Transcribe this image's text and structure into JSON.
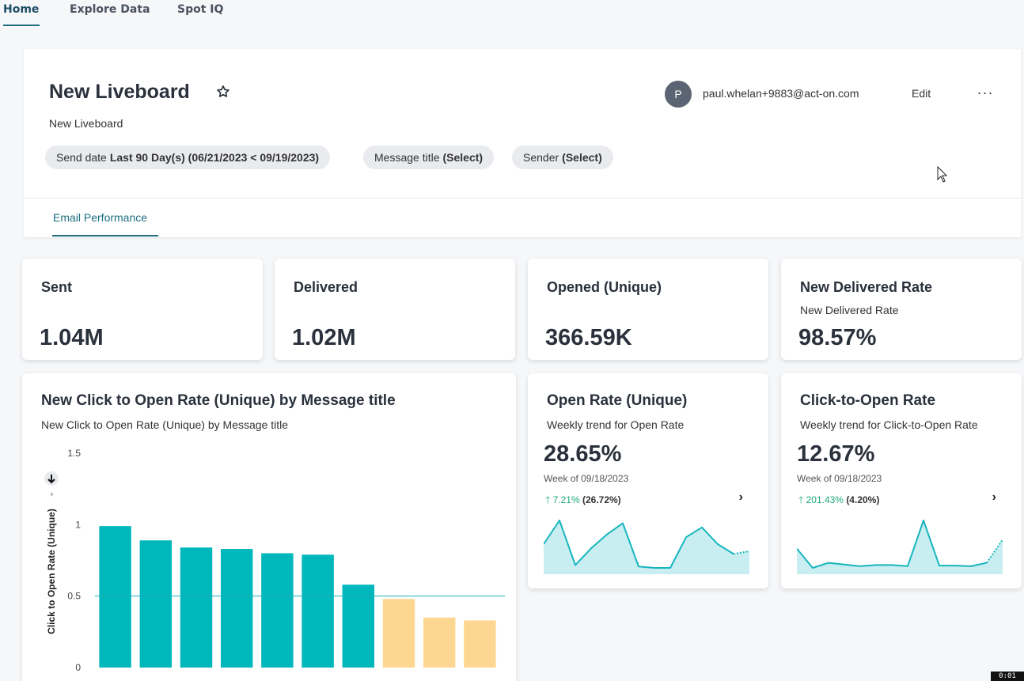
{
  "nav": {
    "tabs": [
      {
        "label": "Home",
        "active": true
      },
      {
        "label": "Explore Data",
        "active": false
      },
      {
        "label": "Spot IQ",
        "active": false
      }
    ]
  },
  "liveboard": {
    "title": "New Liveboard",
    "subtitle": "New Liveboard",
    "user": {
      "initial": "P",
      "email": "paul.whelan+9883@act-on.com"
    },
    "edit_label": "Edit",
    "more_label": "···",
    "filters": [
      {
        "label": "Send date",
        "value": "Last 90 Day(s) (06/21/2023 < 09/19/2023)"
      },
      {
        "label": "Message title",
        "value": "(Select)"
      },
      {
        "label": "Sender",
        "value": "(Select)"
      }
    ],
    "tab": "Email Performance"
  },
  "kpis": [
    {
      "title": "Sent",
      "subtitle": "",
      "value": "1.04M"
    },
    {
      "title": "Delivered",
      "subtitle": "",
      "value": "1.02M"
    },
    {
      "title": "Opened (Unique)",
      "subtitle": "",
      "value": "366.59K"
    },
    {
      "title": "New Delivered Rate",
      "subtitle": "New Delivered Rate",
      "value": "98.57%"
    }
  ],
  "bar_card": {
    "title": "New Click to Open Rate (Unique) by Message title",
    "subtitle": "New Click to Open Rate (Unique) by Message title"
  },
  "chart_data": {
    "type": "bar",
    "title": "New Click to Open Rate (Unique) by Message title",
    "subtitle": "New Click to Open Rate (Unique) by Message title",
    "ylabel": "Click to Open Rate (Unique)",
    "xlabel": "",
    "ylim": [
      0,
      1.5
    ],
    "yticks": [
      "0",
      "0.5",
      "1",
      "1.5"
    ],
    "reference_line": 0.5,
    "values": [
      0.99,
      0.89,
      0.84,
      0.83,
      0.8,
      0.79,
      0.58,
      0.48,
      0.35,
      0.33
    ],
    "colors": {
      "above": "#00b8bc",
      "below": "#fdd792"
    },
    "grid": false
  },
  "trends": [
    {
      "title": "Open Rate (Unique)",
      "subtitle": "Weekly trend for Open Rate",
      "value": "28.65%",
      "week": "Week of 09/18/2023",
      "change": "7.21%",
      "change_abs": "(26.72%)",
      "series": [
        26.5,
        28.2,
        25.0,
        26.2,
        27.2,
        28.0,
        24.9,
        24.8,
        24.8,
        27.0,
        27.7,
        26.5,
        25.8,
        26.0
      ]
    },
    {
      "title": "Click-to-Open Rate",
      "subtitle": "Weekly trend for Click-to-Open Rate",
      "value": "12.67%",
      "week": "Week of 09/18/2023",
      "change": "201.43%",
      "change_abs": "(4.20%)",
      "series": [
        7.6,
        4.2,
        5.1,
        4.8,
        4.5,
        4.7,
        4.7,
        4.5,
        12.6,
        4.6,
        4.6,
        4.5,
        5.1,
        9.2
      ]
    }
  ],
  "colors": {
    "accent": "#1d6e80",
    "spark_line": "#17b5bd",
    "spark_fill": "#c9eef1",
    "up": "#1ea97c"
  },
  "overlay": {
    "timestamp": "0:01"
  }
}
